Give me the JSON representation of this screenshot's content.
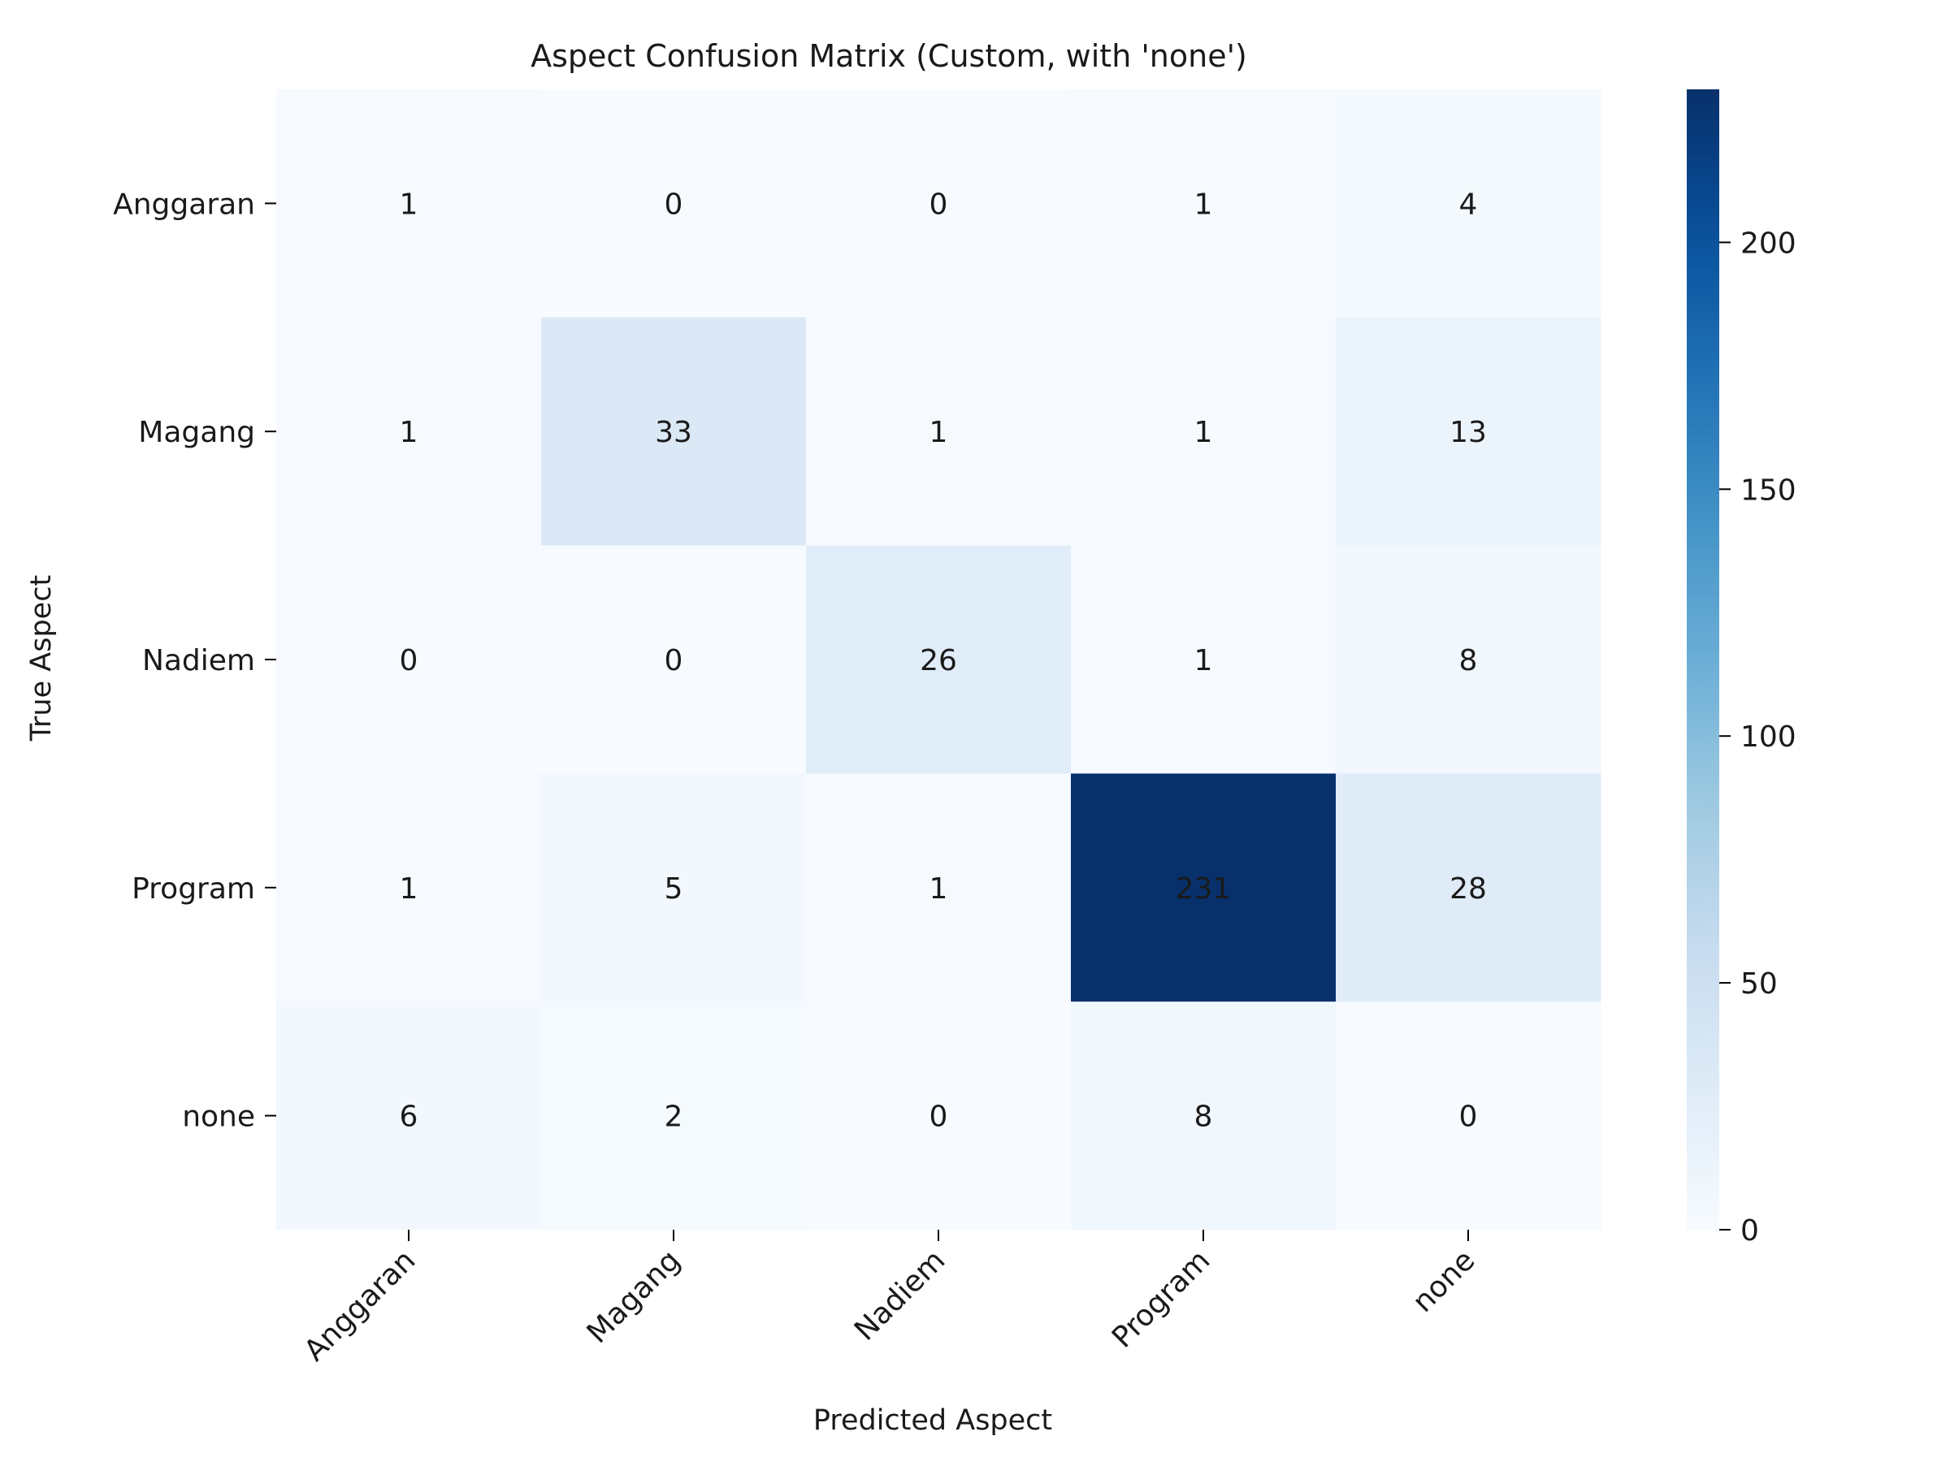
{
  "chart_data": {
    "type": "heatmap",
    "title": "Aspect Confusion Matrix (Custom, with 'none')",
    "xlabel": "Predicted Aspect",
    "ylabel": "True Aspect",
    "x_categories": [
      "Anggaran",
      "Magang",
      "Nadiem",
      "Program",
      "none"
    ],
    "y_categories": [
      "Anggaran",
      "Magang",
      "Nadiem",
      "Program",
      "none"
    ],
    "values": [
      [
        1,
        0,
        0,
        1,
        4
      ],
      [
        1,
        33,
        1,
        1,
        13
      ],
      [
        0,
        0,
        26,
        1,
        8
      ],
      [
        1,
        5,
        1,
        231,
        28
      ],
      [
        6,
        2,
        0,
        8,
        0
      ]
    ],
    "colormap": "Blues",
    "colorbar": {
      "range": [
        0,
        231
      ],
      "ticks": [
        0,
        50,
        100,
        150,
        200
      ]
    },
    "annotations_shown": true,
    "grid": false
  }
}
